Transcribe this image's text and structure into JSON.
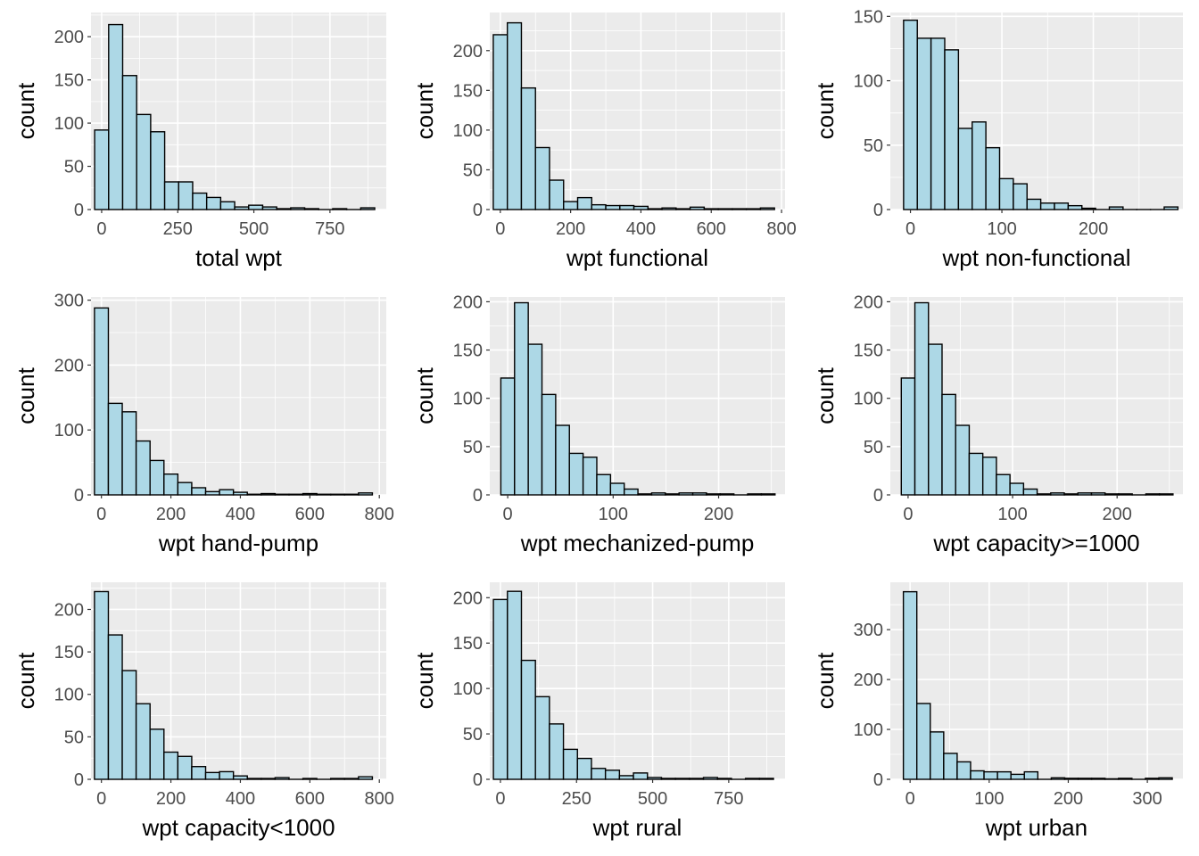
{
  "chart_data": [
    {
      "type": "bar",
      "title": "",
      "xlabel": "total wpt",
      "ylabel": "count",
      "xlim": [
        -35,
        935
      ],
      "ylim": [
        0,
        228
      ],
      "xticks": [
        0,
        250,
        500,
        750
      ],
      "yticks": [
        0,
        50,
        100,
        150,
        200
      ],
      "bin_width": 46,
      "bin_start": -23,
      "values": [
        92,
        214,
        155,
        110,
        90,
        32,
        32,
        19,
        14,
        9,
        3,
        5,
        3,
        1,
        2,
        1,
        0,
        1,
        0,
        2
      ]
    },
    {
      "type": "bar",
      "title": "",
      "xlabel": "wpt functional",
      "ylabel": "count",
      "xlim": [
        -30,
        810
      ],
      "ylim": [
        0,
        248
      ],
      "xticks": [
        0,
        200,
        400,
        600,
        800
      ],
      "yticks": [
        0,
        50,
        100,
        150,
        200
      ],
      "bin_width": 40,
      "bin_start": -20,
      "values": [
        220,
        235,
        153,
        78,
        37,
        10,
        15,
        6,
        5,
        5,
        4,
        1,
        2,
        1,
        3,
        1,
        1,
        1,
        1,
        2
      ]
    },
    {
      "type": "bar",
      "title": "",
      "xlabel": "wpt non-functional",
      "ylabel": "count",
      "xlim": [
        -22,
        298
      ],
      "ylim": [
        0,
        153
      ],
      "xticks": [
        0,
        100,
        200
      ],
      "yticks": [
        0,
        50,
        100,
        150
      ],
      "bin_width": 15,
      "bin_start": -7.5,
      "values": [
        147,
        133,
        133,
        124,
        63,
        68,
        48,
        24,
        20,
        8,
        5,
        5,
        3,
        1,
        0,
        2,
        0,
        0,
        0,
        2
      ]
    },
    {
      "type": "bar",
      "title": "",
      "xlabel": "wpt hand-pump",
      "ylabel": "count",
      "xlim": [
        -30,
        820
      ],
      "ylim": [
        0,
        305
      ],
      "xticks": [
        0,
        200,
        400,
        600,
        800
      ],
      "yticks": [
        0,
        100,
        200,
        300
      ],
      "bin_width": 40,
      "bin_start": -20,
      "values": [
        288,
        141,
        128,
        83,
        53,
        32,
        19,
        11,
        5,
        8,
        4,
        1,
        2,
        1,
        1,
        2,
        1,
        1,
        1,
        3
      ]
    },
    {
      "type": "bar",
      "title": "",
      "xlabel": "wpt mechanized-pump",
      "ylabel": "count",
      "xlim": [
        -17,
        263
      ],
      "ylim": [
        0,
        205
      ],
      "xticks": [
        0,
        100,
        200
      ],
      "yticks": [
        0,
        50,
        100,
        150,
        200
      ],
      "bin_width": 13,
      "bin_start": -6.5,
      "values": [
        121,
        199,
        156,
        104,
        72,
        43,
        39,
        21,
        12,
        6,
        1,
        2,
        1,
        2,
        2,
        1,
        1,
        0,
        1,
        1
      ]
    },
    {
      "type": "bar",
      "title": "",
      "xlabel": "wpt capacity>=1000",
      "ylabel": "count",
      "xlim": [
        -17,
        263
      ],
      "ylim": [
        0,
        205
      ],
      "xticks": [
        0,
        100,
        200
      ],
      "yticks": [
        0,
        50,
        100,
        150,
        200
      ],
      "bin_width": 13,
      "bin_start": -6.5,
      "values": [
        121,
        199,
        156,
        104,
        72,
        43,
        39,
        21,
        12,
        6,
        1,
        2,
        1,
        2,
        2,
        1,
        1,
        0,
        1,
        1
      ]
    },
    {
      "type": "bar",
      "title": "",
      "xlabel": "wpt capacity<1000",
      "ylabel": "count",
      "xlim": [
        -30,
        820
      ],
      "ylim": [
        0,
        232
      ],
      "xticks": [
        0,
        200,
        400,
        600,
        800
      ],
      "yticks": [
        0,
        50,
        100,
        150,
        200
      ],
      "bin_width": 40,
      "bin_start": -20,
      "values": [
        221,
        170,
        128,
        89,
        59,
        32,
        27,
        15,
        8,
        9,
        4,
        1,
        1,
        2,
        0,
        1,
        0,
        1,
        1,
        3
      ]
    },
    {
      "type": "bar",
      "title": "",
      "xlabel": "wpt rural",
      "ylabel": "count",
      "xlim": [
        -35,
        935
      ],
      "ylim": [
        0,
        217
      ],
      "xticks": [
        0,
        250,
        500,
        750
      ],
      "yticks": [
        0,
        50,
        100,
        150,
        200
      ],
      "bin_width": 46,
      "bin_start": -23,
      "values": [
        198,
        207,
        131,
        91,
        61,
        33,
        23,
        12,
        10,
        4,
        7,
        2,
        1,
        1,
        1,
        2,
        1,
        0,
        1,
        1
      ]
    },
    {
      "type": "bar",
      "title": "",
      "xlabel": "wpt urban",
      "ylabel": "count",
      "xlim": [
        -25,
        345
      ],
      "ylim": [
        0,
        395
      ],
      "xticks": [
        0,
        100,
        200,
        300
      ],
      "yticks": [
        0,
        100,
        200,
        300
      ],
      "bin_width": 17,
      "bin_start": -8.5,
      "values": [
        376,
        152,
        95,
        52,
        35,
        17,
        15,
        15,
        10,
        15,
        0,
        3,
        2,
        2,
        2,
        1,
        2,
        0,
        2,
        3
      ]
    }
  ],
  "colors": {
    "panel_bg": "#ebebeb",
    "grid": "#ffffff",
    "bar_fill": "#add8e6",
    "bar_stroke": "#000000",
    "tick_text": "#4d4d4d",
    "axis_title": "#000000"
  }
}
